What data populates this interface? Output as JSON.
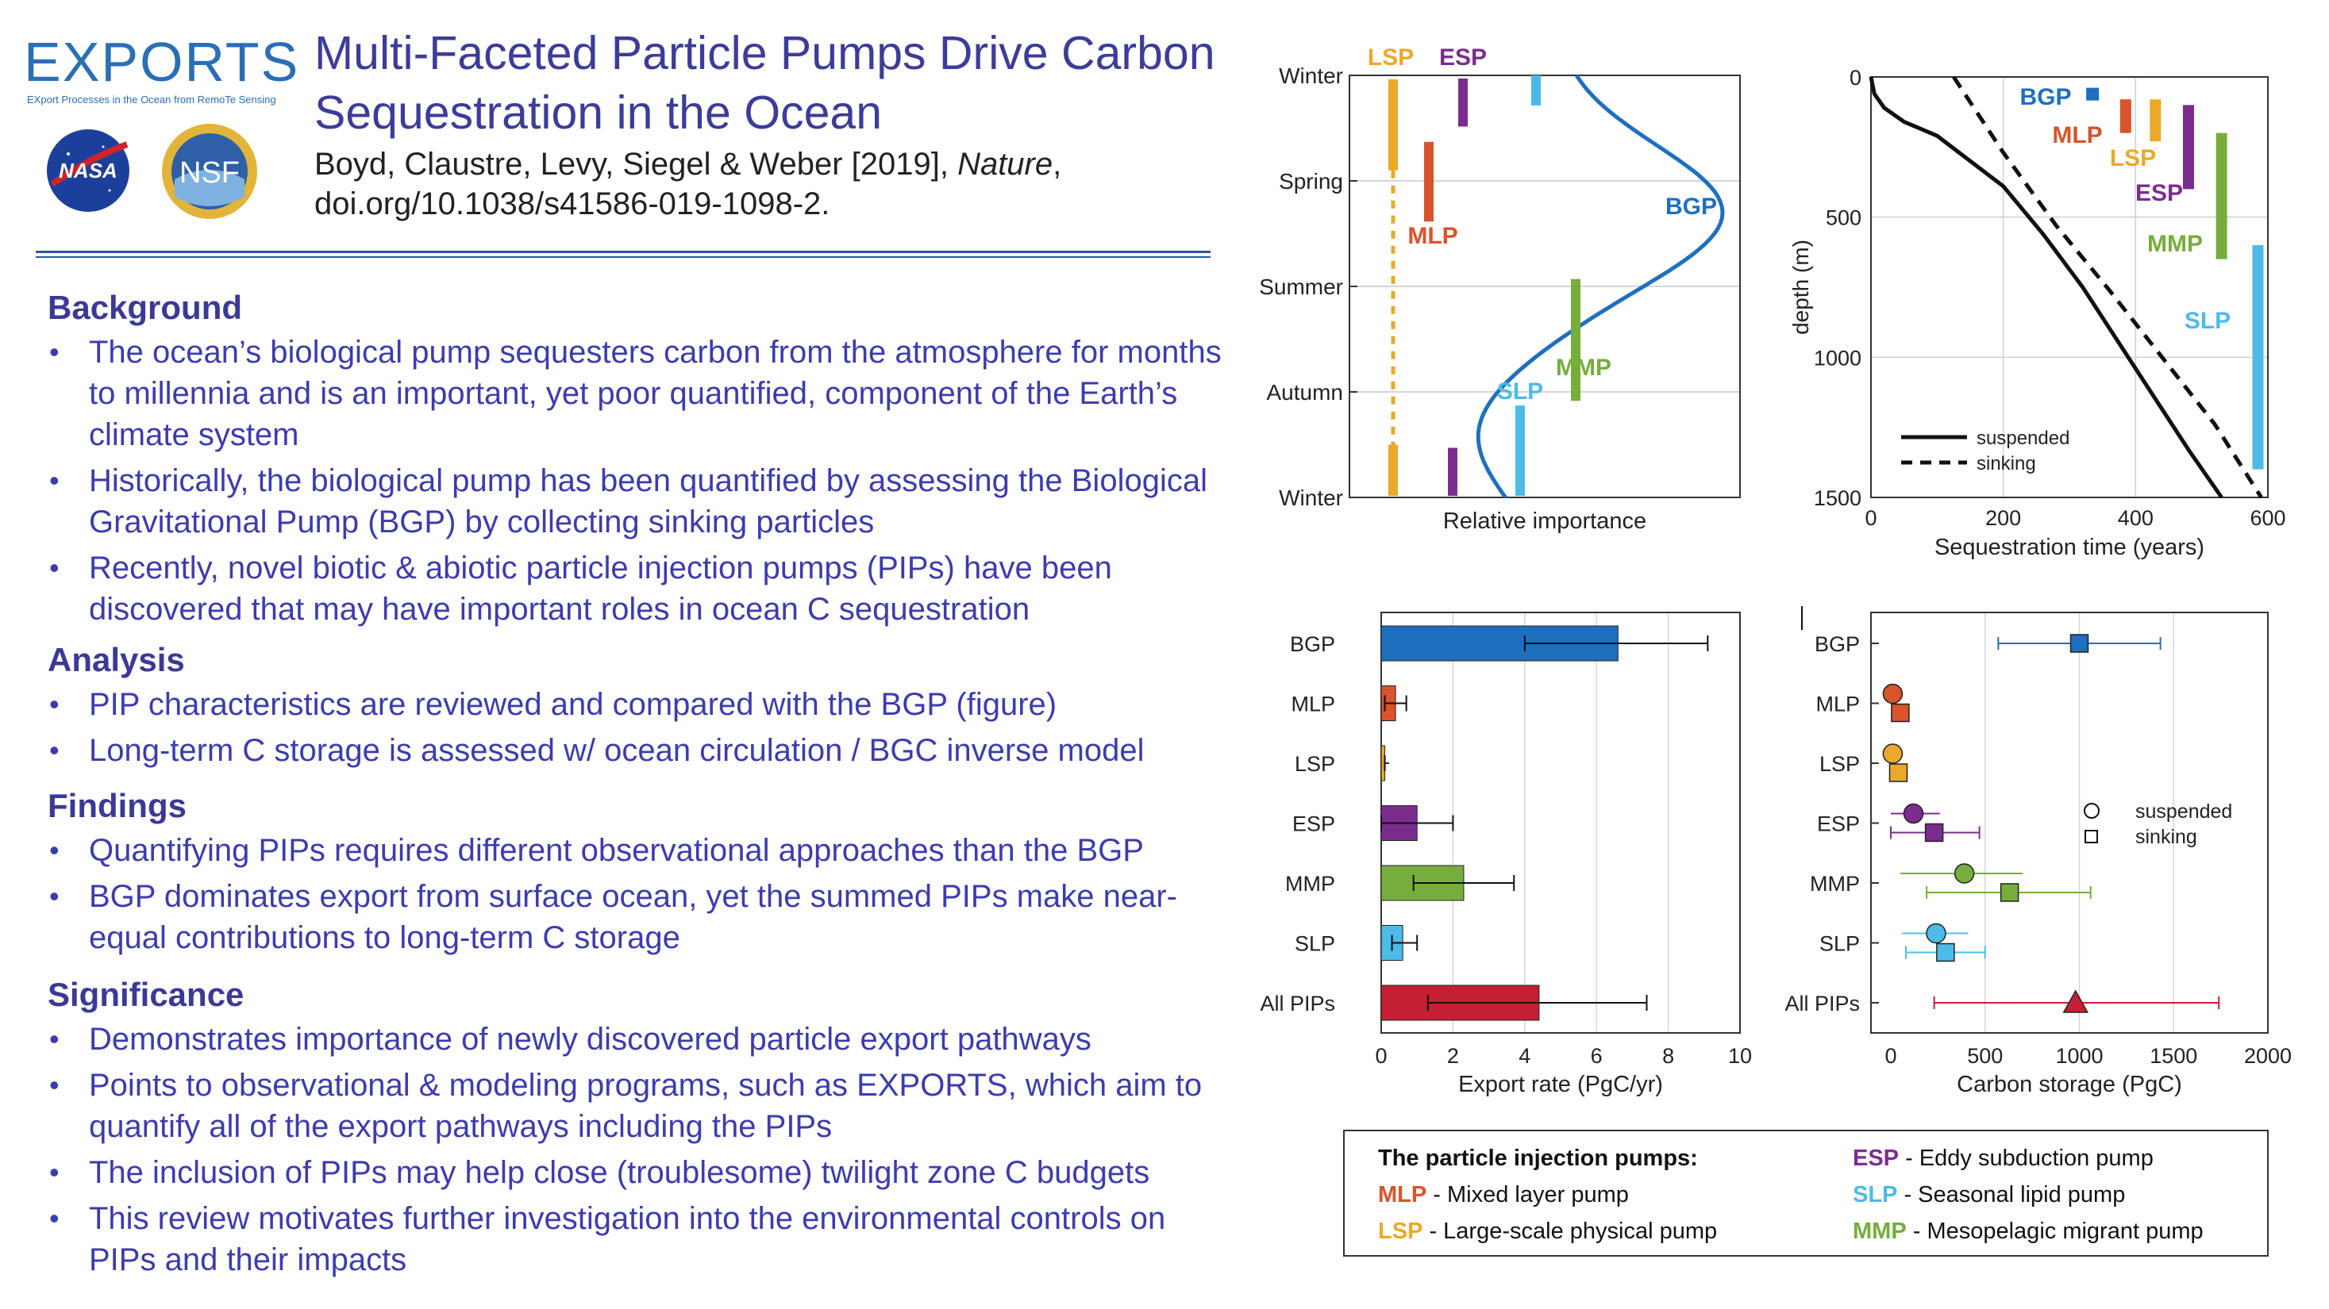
{
  "header": {
    "logo_word": "EXPORTS",
    "logo_subtitle": "EXport Processes in the Ocean from RemoTe Sensing",
    "logo_nasa": "NASA",
    "logo_nsf": "NSF",
    "title_line1": "Multi-Faceted Particle Pumps Drive Carbon",
    "title_line2": "Sequestration in the Ocean",
    "citation_authors": "Boyd, Claustre, Levy, Siegel & Weber [2019], ",
    "citation_journal": "Nature",
    "citation_tail": ",",
    "citation_doi": "doi.org/10.1038/s41586-019-1098-2."
  },
  "sections": [
    {
      "heading": "Background",
      "bullets": [
        "The ocean’s biological pump sequesters carbon from the atmosphere for months to millennia and is an important, yet poor quantified, component of the Earth’s climate system",
        "Historically, the biological pump has been quantified by assessing the Biological Gravitational Pump (BGP) by collecting sinking particles",
        "Recently, novel biotic & abiotic particle injection pumps (PIPs) have been discovered that may have important roles in ocean C sequestration"
      ]
    },
    {
      "heading": "Analysis",
      "bullets": [
        "PIP characteristics are reviewed and compared with the BGP (figure)",
        "Long-term C storage is assessed w/ ocean circulation / BGC inverse model"
      ]
    },
    {
      "heading": "Findings",
      "bullets": [
        "Quantifying PIPs requires different observational approaches than the BGP",
        "BGP dominates export from surface ocean, yet the summed PIPs make near-equal contributions to long-term C storage"
      ]
    },
    {
      "heading": "Significance",
      "bullets": [
        "Demonstrates importance of newly discovered particle export pathways",
        "Points to observational & modeling programs, such as EXPORTS, which aim to quantify all of the export pathways including the PIPs",
        "The inclusion of PIPs may help close (troublesome) twilight zone C budgets",
        "This review motivates further investigation into the environmental controls on PIPs and their impacts"
      ]
    }
  ],
  "colors": {
    "BGP": "#1f6fbf",
    "MLP": "#d9532b",
    "LSP": "#eaa92a",
    "ESP": "#7b2d8e",
    "MMP": "#76ad3c",
    "SLP": "#4cbbe8",
    "ALL": "#c51f34"
  },
  "chart_data": [
    {
      "type": "line",
      "xlabel": "Relative importance",
      "ylabel": "",
      "y_ticks": [
        "Winter",
        "Spring",
        "Summer",
        "Autumn",
        "Winter"
      ],
      "season_bars": [
        {
          "name": "LSP",
          "season_start": 0.0,
          "season_end": 1.0,
          "style": "solid-dashed-solid"
        },
        {
          "name": "ESP",
          "season_start": 0.0,
          "season_end": 0.5
        },
        {
          "name": "MLP",
          "season_start": 0.6,
          "season_end": 1.4
        },
        {
          "name": "MMP",
          "season_start": 1.9,
          "season_end": 3.1
        },
        {
          "name": "SLP",
          "season_start": 3.1,
          "season_end": 4.0
        },
        {
          "name": "ESP",
          "season_start": 3.5,
          "season_end": 4.0
        }
      ],
      "curve_label": "BGP",
      "labels": [
        "LSP",
        "ESP",
        "MLP",
        "MMP",
        "SLP",
        "BGP"
      ]
    },
    {
      "type": "line",
      "xlabel": "Sequestration time (years)",
      "ylabel": "depth (m)",
      "xlim": [
        0,
        600
      ],
      "ylim": [
        0,
        1500
      ],
      "x_ticks": [
        0,
        200,
        400,
        600
      ],
      "y_ticks": [
        0,
        500,
        1000,
        1500
      ],
      "series": [
        {
          "name": "suspended",
          "x": [
            0,
            5,
            20,
            50,
            100,
            150,
            200,
            260,
            320,
            400,
            480,
            530
          ],
          "y": [
            0,
            60,
            110,
            160,
            210,
            300,
            390,
            560,
            750,
            1040,
            1330,
            1500
          ]
        },
        {
          "name": "sinking",
          "x": [
            125,
            200,
            280,
            360,
            440,
            520,
            590
          ],
          "y": [
            0,
            270,
            530,
            760,
            1000,
            1240,
            1500
          ]
        }
      ],
      "depth_bars": [
        {
          "name": "BGP",
          "x": 335,
          "top": 50,
          "bottom": 90,
          "style": "square"
        },
        {
          "name": "MLP",
          "x": 385,
          "top": 80,
          "bottom": 200
        },
        {
          "name": "LSP",
          "x": 430,
          "top": 80,
          "bottom": 230
        },
        {
          "name": "ESP",
          "x": 480,
          "top": 100,
          "bottom": 400
        },
        {
          "name": "MMP",
          "x": 530,
          "top": 200,
          "bottom": 650
        },
        {
          "name": "SLP",
          "x": 585,
          "top": 600,
          "bottom": 1400
        }
      ],
      "legend": [
        "suspended",
        "sinking"
      ]
    },
    {
      "type": "bar",
      "xlabel": "Export rate (PgC/yr)",
      "categories": [
        "BGP",
        "MLP",
        "LSP",
        "ESP",
        "MMP",
        "SLP",
        "All PIPs"
      ],
      "values": [
        6.6,
        0.4,
        0.1,
        1.0,
        2.3,
        0.6,
        4.4
      ],
      "err_low": [
        4.0,
        0.1,
        0.1,
        0.0,
        0.9,
        0.3,
        1.3
      ],
      "err_high": [
        9.1,
        0.7,
        0.1,
        2.0,
        3.7,
        1.0,
        7.4
      ],
      "xlim": [
        0,
        10
      ],
      "x_ticks": [
        0,
        2,
        4,
        6,
        8,
        10
      ]
    },
    {
      "type": "scatter",
      "xlabel": "Carbon storage (PgC)",
      "categories": [
        "BGP",
        "MLP",
        "LSP",
        "ESP",
        "MMP",
        "SLP",
        "All PIPs"
      ],
      "suspended": [
        null,
        10,
        10,
        120,
        390,
        240,
        null
      ],
      "suspended_err": [
        null,
        [
          0,
          20
        ],
        [
          0,
          20
        ],
        [
          0,
          260
        ],
        [
          50,
          700
        ],
        [
          60,
          410
        ],
        null
      ],
      "sinking": [
        1000,
        50,
        40,
        230,
        630,
        290,
        null
      ],
      "sinking_err": [
        [
          570,
          1430
        ],
        [
          40,
          60
        ],
        [
          30,
          50
        ],
        [
          0,
          470
        ],
        [
          190,
          1060
        ],
        [
          80,
          500
        ],
        null
      ],
      "all_pips": {
        "value": 980,
        "err": [
          230,
          1740
        ]
      },
      "xlim": [
        0,
        2000
      ],
      "x_ticks": [
        0,
        500,
        1000,
        1500,
        2000
      ],
      "legend": [
        "suspended",
        "sinking"
      ]
    }
  ],
  "pump_legend": {
    "heading": "The particle injection pumps:",
    "items": [
      {
        "abbr": "MLP",
        "desc": " - Mixed layer pump"
      },
      {
        "abbr": "LSP",
        "desc": " - Large-scale physical pump"
      },
      {
        "abbr": "ESP",
        "desc": " - Eddy subduction pump"
      },
      {
        "abbr": "SLP",
        "desc": " - Seasonal lipid pump"
      },
      {
        "abbr": "MMP",
        "desc": " - Mesopelagic migrant pump"
      }
    ]
  }
}
